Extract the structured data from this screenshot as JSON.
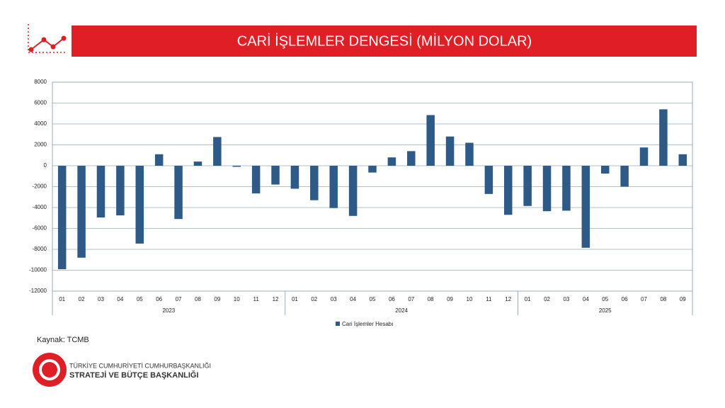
{
  "chart_data": {
    "type": "bar",
    "title": "CARİ İŞLEMLER DENGESİ (MİLYON DOLAR)",
    "groups": [
      {
        "label": "2023",
        "categories": [
          "01",
          "02",
          "03",
          "04",
          "05",
          "06",
          "07",
          "08",
          "09",
          "10",
          "11",
          "12"
        ]
      },
      {
        "label": "2024",
        "categories": [
          "01",
          "02",
          "03",
          "04",
          "05",
          "06",
          "07",
          "08",
          "09",
          "10",
          "11",
          "12"
        ]
      },
      {
        "label": "2025",
        "categories": [
          "01",
          "02",
          "03",
          "04",
          "05",
          "06",
          "07",
          "08",
          "09"
        ]
      }
    ],
    "series": [
      {
        "name": "Cari İşlemler Hesabı",
        "color": "#2e5a88",
        "values": [
          -9900,
          -8800,
          -4950,
          -4750,
          -7450,
          1100,
          -5100,
          400,
          2750,
          -100,
          -2650,
          -1800,
          -2200,
          -3300,
          -4050,
          -4800,
          -650,
          800,
          1400,
          4850,
          2800,
          2200,
          -2700,
          -4700,
          -3850,
          -4350,
          -4300,
          -7850,
          -750,
          -2000,
          1750,
          5400,
          1100
        ]
      }
    ],
    "ylim": [
      -12000,
      8000
    ],
    "yticks": [
      -12000,
      -10000,
      -8000,
      -6000,
      -4000,
      -2000,
      0,
      2000,
      4000,
      6000,
      8000
    ],
    "grid": true,
    "legend": "bottom"
  },
  "source": "Kaynak: TCMB",
  "footer": {
    "line1": "TÜRKİYE CUMHURİYETİ CUMHURBAŞKANLIĞI",
    "line2": "STRATEJİ VE BÜTÇE BAŞKANLIĞI"
  }
}
